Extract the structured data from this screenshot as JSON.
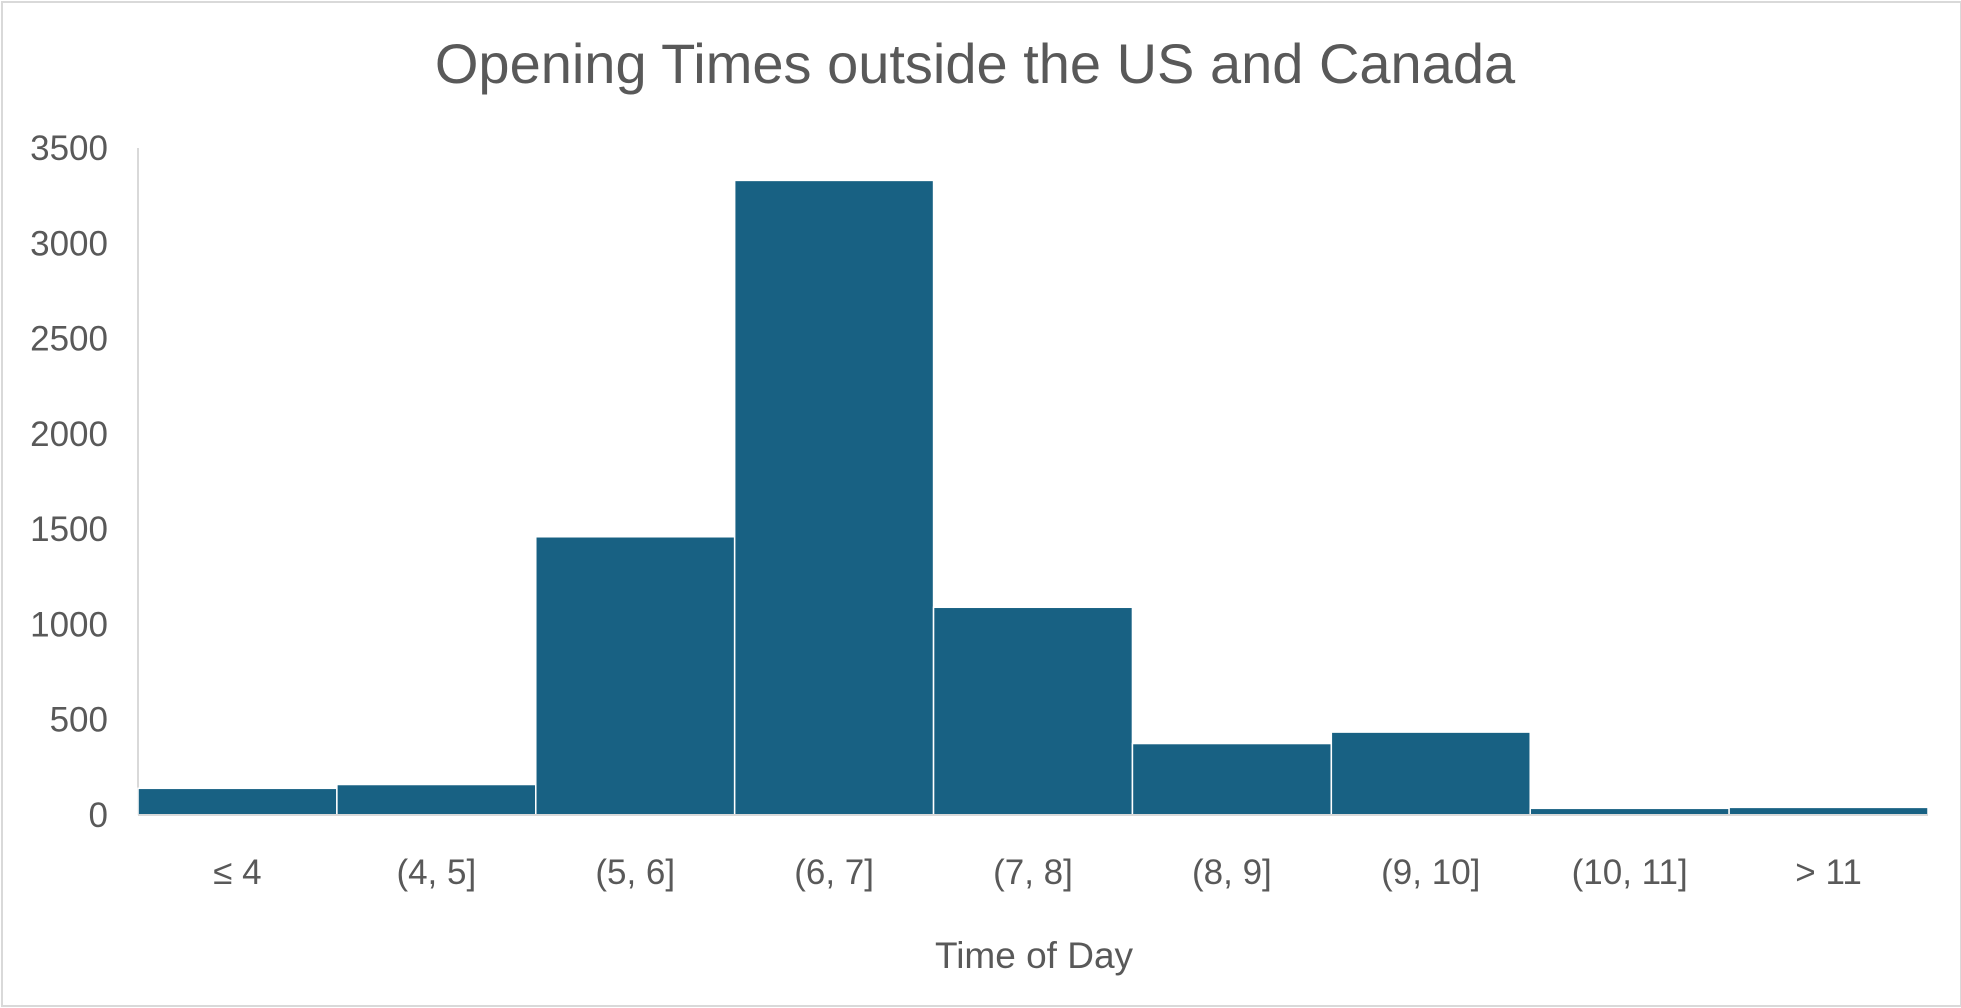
{
  "chart_data": {
    "type": "bar",
    "title": "Opening Times outside the US and Canada",
    "xlabel": "Time of Day",
    "ylabel": "",
    "categories": [
      "≤ 4",
      "(4, 5]",
      "(5, 6]",
      "(6, 7]",
      "(7, 8]",
      "(8, 9]",
      "(9, 10]",
      "(10, 11]",
      "> 11"
    ],
    "values": [
      140,
      160,
      1460,
      3330,
      1090,
      375,
      435,
      35,
      40
    ],
    "ylim": [
      0,
      3500
    ],
    "yticks": [
      0,
      500,
      1000,
      1500,
      2000,
      2500,
      3000,
      3500
    ],
    "grid": false,
    "legend": "none",
    "bar_color": "#186183",
    "bar_border_color": "#ffffff",
    "axis_color": "#d9d9d9",
    "text_color": "#595959"
  }
}
